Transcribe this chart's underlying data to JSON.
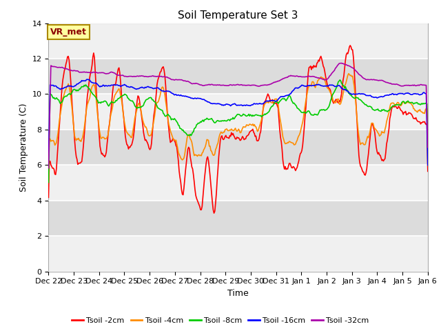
{
  "title": "Soil Temperature Set 3",
  "xlabel": "Time",
  "ylabel": "Soil Temperature (C)",
  "ylim": [
    0,
    14
  ],
  "yticks": [
    0,
    2,
    4,
    6,
    8,
    10,
    12,
    14
  ],
  "annotation": "VR_met",
  "legend_labels": [
    "Tsoil -2cm",
    "Tsoil -4cm",
    "Tsoil -8cm",
    "Tsoil -16cm",
    "Tsoil -32cm"
  ],
  "line_colors": [
    "#ff0000",
    "#ff8c00",
    "#00cc00",
    "#0000ff",
    "#aa00aa"
  ],
  "line_width": 1.2,
  "bg_color": "#ffffff",
  "plot_bg_light": "#f0f0f0",
  "plot_bg_dark": "#dcdcdc",
  "grid_color": "#ffffff",
  "x_labels": [
    "Dec 22",
    "Dec 23",
    "Dec 24",
    "Dec 25",
    "Dec 26",
    "Dec 27",
    "Dec 28",
    "Dec 29",
    "Dec 30",
    "Dec 31",
    "Jan 1",
    "Jan 2",
    "Jan 3",
    "Jan 4",
    "Jan 5",
    "Jan 6"
  ],
  "n_points": 480,
  "seed": 99,
  "tsoil2_xp": [
    0.0,
    0.3,
    0.55,
    0.8,
    1.05,
    1.3,
    1.55,
    1.8,
    2.05,
    2.3,
    2.55,
    2.8,
    3.05,
    3.3,
    3.55,
    3.8,
    4.05,
    4.3,
    4.55,
    4.8,
    5.05,
    5.3,
    5.55,
    5.8,
    6.05,
    6.3,
    6.55,
    6.8,
    7.05,
    7.3,
    7.55,
    7.8,
    8.05,
    8.3,
    8.55,
    8.8,
    9.05,
    9.3,
    9.55,
    9.8,
    10.05,
    10.3,
    10.55,
    10.8,
    11.05,
    11.3,
    11.55,
    11.8,
    12.05,
    12.3,
    12.55,
    12.8,
    13.05,
    13.3,
    13.55,
    13.8,
    14.05,
    14.3,
    14.55,
    14.8,
    15.0
  ],
  "tsoil2_yp": [
    6.1,
    5.5,
    10.8,
    12.5,
    6.7,
    5.8,
    10.2,
    12.3,
    6.6,
    6.7,
    10.4,
    11.5,
    7.2,
    6.7,
    10.2,
    7.3,
    6.8,
    10.8,
    11.8,
    7.4,
    7.3,
    4.0,
    7.5,
    4.5,
    3.5,
    6.8,
    2.9,
    7.5,
    7.5,
    7.7,
    7.5,
    7.5,
    8.1,
    7.1,
    9.5,
    9.7,
    9.5,
    5.9,
    6.0,
    5.8,
    7.0,
    11.5,
    11.5,
    12.0,
    10.5,
    9.5,
    9.7,
    12.4,
    12.5,
    5.8,
    5.5,
    8.5,
    6.5,
    6.3,
    9.2,
    9.2,
    9.0,
    9.0,
    8.5,
    8.3,
    8.3
  ],
  "tsoil4_xp": [
    0.0,
    0.3,
    0.55,
    0.8,
    1.05,
    1.3,
    1.55,
    1.8,
    2.05,
    2.3,
    2.55,
    2.8,
    3.05,
    3.3,
    3.55,
    3.8,
    4.05,
    4.3,
    4.55,
    4.8,
    5.05,
    5.3,
    5.55,
    5.8,
    6.05,
    6.3,
    6.55,
    6.8,
    7.05,
    7.3,
    7.55,
    7.8,
    8.05,
    8.3,
    8.55,
    8.8,
    9.05,
    9.3,
    9.55,
    9.8,
    10.05,
    10.3,
    10.55,
    10.8,
    11.05,
    11.3,
    11.55,
    11.8,
    12.05,
    12.3,
    12.55,
    12.8,
    13.05,
    13.3,
    13.55,
    13.8,
    14.05,
    14.3,
    14.55,
    14.8,
    15.0
  ],
  "tsoil4_yp": [
    7.5,
    7.2,
    9.5,
    10.8,
    7.5,
    7.2,
    9.5,
    10.8,
    7.4,
    7.5,
    9.5,
    10.5,
    8.0,
    7.5,
    9.8,
    8.0,
    7.5,
    9.5,
    10.5,
    7.8,
    7.3,
    6.0,
    7.8,
    6.5,
    6.5,
    7.5,
    6.5,
    7.8,
    8.0,
    8.1,
    7.9,
    8.0,
    8.3,
    7.9,
    9.5,
    9.6,
    9.6,
    7.2,
    7.2,
    7.2,
    8.5,
    10.5,
    10.5,
    11.0,
    10.5,
    9.5,
    9.5,
    11.0,
    11.0,
    7.2,
    7.2,
    8.5,
    7.8,
    7.8,
    9.5,
    9.5,
    9.5,
    9.5,
    9.0,
    9.0,
    9.0
  ],
  "tsoil8_xp": [
    0.0,
    0.5,
    1.0,
    1.5,
    2.0,
    2.5,
    3.0,
    3.5,
    4.0,
    4.5,
    5.0,
    5.5,
    6.0,
    6.5,
    7.0,
    7.5,
    8.0,
    8.5,
    9.0,
    9.5,
    10.0,
    10.5,
    11.0,
    11.5,
    12.0,
    12.5,
    13.0,
    13.5,
    14.0,
    14.5,
    15.0
  ],
  "tsoil8_yp": [
    10.0,
    9.5,
    10.2,
    10.5,
    9.5,
    9.5,
    10.0,
    9.2,
    9.8,
    9.0,
    8.5,
    7.5,
    8.5,
    8.5,
    8.5,
    8.8,
    8.8,
    8.8,
    9.5,
    9.8,
    9.0,
    8.8,
    9.2,
    10.8,
    9.8,
    9.5,
    9.0,
    9.2,
    9.5,
    9.5,
    9.5
  ],
  "tsoil16_xp": [
    0.0,
    0.5,
    1.0,
    1.5,
    2.0,
    2.5,
    3.0,
    3.5,
    4.0,
    4.5,
    5.0,
    5.5,
    6.0,
    6.5,
    7.0,
    7.5,
    8.0,
    8.5,
    9.0,
    9.5,
    10.0,
    10.5,
    11.0,
    11.5,
    12.0,
    12.5,
    13.0,
    13.5,
    14.0,
    14.5,
    15.0
  ],
  "tsoil16_yp": [
    10.5,
    10.3,
    10.5,
    10.8,
    10.5,
    10.5,
    10.5,
    10.3,
    10.4,
    10.2,
    10.0,
    9.8,
    9.7,
    9.5,
    9.4,
    9.4,
    9.4,
    9.5,
    9.7,
    10.0,
    10.5,
    10.5,
    10.5,
    10.5,
    10.0,
    10.0,
    9.8,
    10.0,
    10.0,
    10.0,
    10.0
  ],
  "tsoil32_xp": [
    0.0,
    0.5,
    1.0,
    1.5,
    2.0,
    2.5,
    3.0,
    3.5,
    4.0,
    4.5,
    5.0,
    5.5,
    6.0,
    6.5,
    7.0,
    7.5,
    8.0,
    8.5,
    9.0,
    9.5,
    10.0,
    10.5,
    11.0,
    11.5,
    12.0,
    12.5,
    13.0,
    13.5,
    14.0,
    14.5,
    15.0
  ],
  "tsoil32_yp": [
    11.6,
    11.5,
    11.3,
    11.2,
    11.2,
    11.2,
    11.0,
    11.0,
    11.0,
    11.0,
    10.8,
    10.7,
    10.5,
    10.5,
    10.5,
    10.5,
    10.5,
    10.5,
    10.7,
    11.0,
    11.0,
    11.0,
    10.8,
    11.8,
    11.5,
    10.8,
    10.8,
    10.6,
    10.5,
    10.5,
    10.5
  ]
}
